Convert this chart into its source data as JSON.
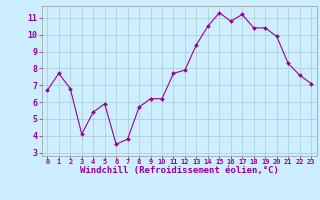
{
  "x": [
    0,
    1,
    2,
    3,
    4,
    5,
    6,
    7,
    8,
    9,
    10,
    11,
    12,
    13,
    14,
    15,
    16,
    17,
    18,
    19,
    20,
    21,
    22,
    23
  ],
  "y": [
    6.7,
    7.7,
    6.8,
    4.1,
    5.4,
    5.9,
    3.5,
    3.8,
    5.7,
    6.2,
    6.2,
    7.7,
    7.9,
    9.4,
    10.5,
    11.3,
    10.8,
    11.2,
    10.4,
    10.4,
    9.9,
    8.3,
    7.6,
    7.1
  ],
  "line_color": "#990099",
  "marker": "D",
  "marker_size": 2.0,
  "line_width": 0.8,
  "bg_color": "#cceeff",
  "grid_color": "#aacccc",
  "xlabel": "Windchill (Refroidissement éolien,°C)",
  "xlabel_color": "#990099",
  "ylabel_ticks": [
    3,
    4,
    5,
    6,
    7,
    8,
    9,
    10,
    11
  ],
  "xtick_labels": [
    "0",
    "1",
    "2",
    "3",
    "4",
    "5",
    "6",
    "7",
    "8",
    "9",
    "10",
    "11",
    "12",
    "13",
    "14",
    "15",
    "16",
    "17",
    "18",
    "19",
    "20",
    "21",
    "22",
    "23"
  ],
  "ylim": [
    2.8,
    11.7
  ],
  "xlim": [
    -0.5,
    23.5
  ],
  "tick_color": "#990099",
  "tick_label_color": "#990099",
  "spine_color": "#999999"
}
